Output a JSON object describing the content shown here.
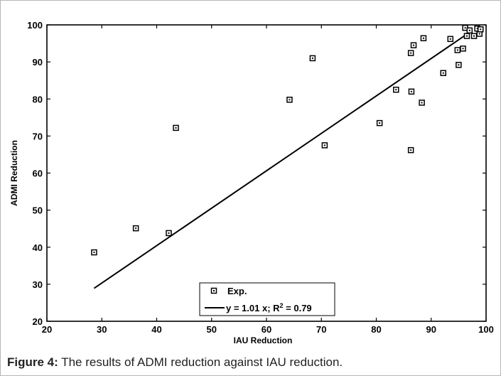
{
  "chart_data": {
    "type": "scatter",
    "xlabel": "IAU Reduction",
    "ylabel": "ADMI Reduction",
    "xlim": [
      20,
      100
    ],
    "ylim": [
      20,
      100
    ],
    "xticks": [
      20,
      30,
      40,
      50,
      60,
      70,
      80,
      90,
      100
    ],
    "yticks": [
      20,
      30,
      40,
      50,
      60,
      70,
      80,
      90,
      100
    ],
    "grid": false,
    "legend_position": "bottom-center",
    "series": [
      {
        "name": "Exp.",
        "marker": "square",
        "color": "#000000",
        "points": [
          [
            28.6,
            38.6
          ],
          [
            36.2,
            45.1
          ],
          [
            42.2,
            43.8
          ],
          [
            43.5,
            72.2
          ],
          [
            64.2,
            79.8
          ],
          [
            68.4,
            91.0
          ],
          [
            70.6,
            67.5
          ],
          [
            80.6,
            73.5
          ],
          [
            83.6,
            82.5
          ],
          [
            86.3,
            66.2
          ],
          [
            86.4,
            82.0
          ],
          [
            86.3,
            92.4
          ],
          [
            86.8,
            94.5
          ],
          [
            88.3,
            79.0
          ],
          [
            88.6,
            96.4
          ],
          [
            92.2,
            87.0
          ],
          [
            93.5,
            96.2
          ],
          [
            94.8,
            93.2
          ],
          [
            95.0,
            89.2
          ],
          [
            95.8,
            93.6
          ],
          [
            96.2,
            99.2
          ],
          [
            96.5,
            97.0
          ],
          [
            97.0,
            98.5
          ],
          [
            97.8,
            97.0
          ],
          [
            98.4,
            99.0
          ],
          [
            98.8,
            97.6
          ],
          [
            99.0,
            98.8
          ]
        ]
      },
      {
        "name": "y = 1.01 x; R",
        "name_superscript": "2",
        "name_suffix": " = 0.79",
        "type": "line",
        "color": "#000000",
        "x": [
          28.6,
          97.5
        ],
        "y": [
          28.9,
          98.5
        ]
      }
    ]
  },
  "caption": {
    "label": "Figure 4:",
    "text": " The results of ADMI reduction against IAU reduction."
  }
}
